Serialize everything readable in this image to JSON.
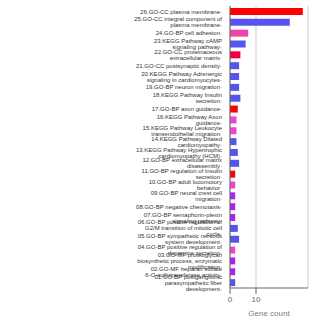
{
  "chart_data": {
    "type": "bar",
    "orientation": "horizontal",
    "xlabel": "Gene count",
    "categories": [
      "26.GO-CC plasma membrane·",
      "25.GO-CC integral component of plasma membrane·",
      "24.GO-BP cell adhesion·",
      "23.KEGG Pathway cAMP signaling pathway·",
      "22.GO-CC proteinaceous extracellular matrix·",
      "21.GO-CC postsynaptic density·",
      "20.KEGG Pathway Adrenergic signaling in cardiomyocytes·",
      "19.GO-BP neuron migration·",
      "18.KEGG Pathway Insulin secretion·",
      "17.GO-BP axon guidance·",
      "16.KEGG Pathway Axon guidance·",
      "15.KEGG Pathway Leukocyte transendothelial migration·",
      "14.KEGG Pathway Dilated cardiomyopathy·",
      "13.KEGG Pathway Hypertrophic cardiomyopathy (HCM)·",
      "12.GO-BP extracellular matrix disassembly·",
      "11.GO-BP regulation of insulin secretion·",
      "10.GO-BP adult locomotory behavior·",
      "09.GO-BP neural crest cell migration·",
      "08.GO-BP negative chemotaxis·",
      "07.GO-BP semaphorin-plexin signaling pathway·",
      "06.GO-BP positive regulation of G2/M transition of mitotic cell cycle·",
      "05.GO-BP sympathetic nervous system development·",
      "04.GO-BP positive regulation of dopamine secretion·",
      "03.GO-MF proteoglycan biosynthetic process, enzymatic modification·",
      "02.GO-MF heparan sulfate 6-O-sulfotransferase activity·",
      "01.GO-BP postganglionic parasympathetic fiber development·"
    ],
    "values": [
      28,
      23,
      7,
      6,
      4,
      3.5,
      3.5,
      3.5,
      4,
      3,
      2.5,
      2.5,
      2.5,
      3,
      3.5,
      2,
      2,
      2,
      2,
      2,
      3,
      3.5,
      2,
      2,
      2,
      2
    ],
    "colors": [
      "#ff0000",
      "#5555ee",
      "#ee44aa",
      "#5555ee",
      "#ee0044",
      "#5555ee",
      "#5555ee",
      "#5555ee",
      "#5555ee",
      "#ff0000",
      "#ee44cc",
      "#ee44cc",
      "#5555ee",
      "#5555ee",
      "#5555ee",
      "#ff0000",
      "#ee44cc",
      "#aa22ee",
      "#aa22ee",
      "#aa22ee",
      "#5555ee",
      "#5555ee",
      "#ee44cc",
      "#aa22ee",
      "#aa22ee",
      "#5555ee"
    ],
    "xlim": [
      0,
      30
    ],
    "xticks": [
      0,
      10
    ],
    "grid": true
  }
}
